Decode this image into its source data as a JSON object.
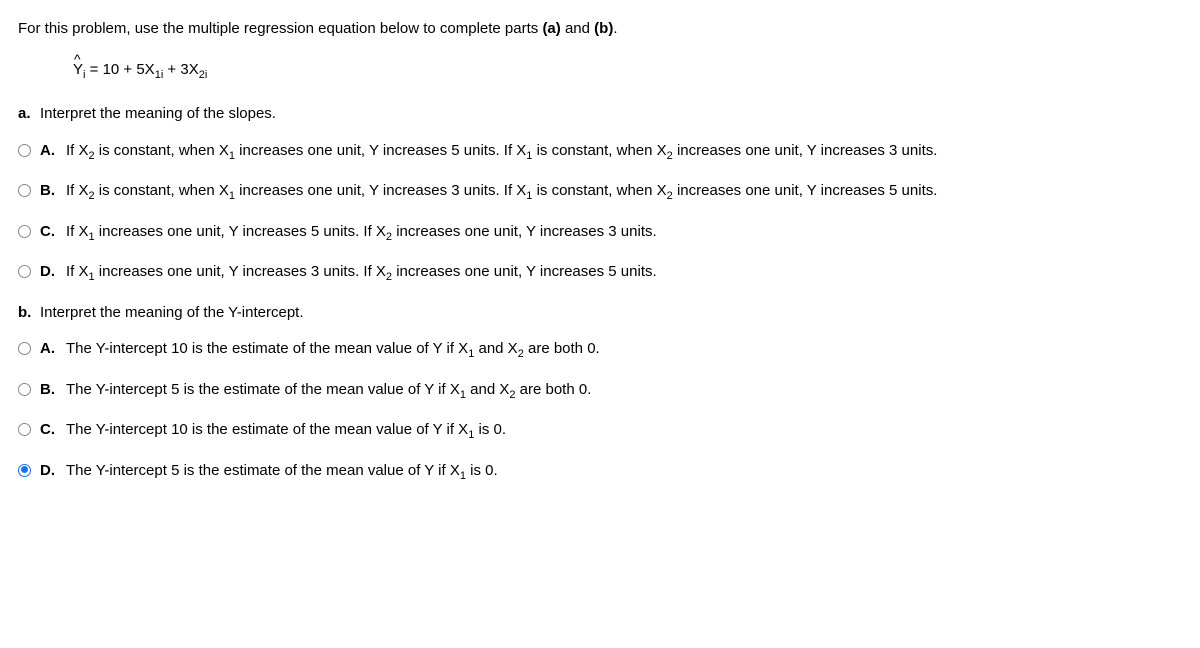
{
  "intro": {
    "prefix": "For this problem, use the multiple regression equation below to complete parts ",
    "part_a": "(a)",
    "mid": " and ",
    "part_b": "(b)",
    "suffix": "."
  },
  "equation": {
    "y": "Y",
    "y_sub": "i",
    "eq": " = 10 + 5X",
    "x1_sub": "1i",
    "plus": " + 3X",
    "x2_sub": "2i"
  },
  "part_a": {
    "label": "a.",
    "text": "Interpret the meaning of the slopes."
  },
  "options_a": [
    {
      "letter": "A.",
      "segments": [
        {
          "t": "If X"
        },
        {
          "sub": "2"
        },
        {
          "t": " is constant, when X"
        },
        {
          "sub": "1"
        },
        {
          "t": " increases one unit, Y increases 5 units.  If X"
        },
        {
          "sub": "1"
        },
        {
          "t": " is constant, when X"
        },
        {
          "sub": "2"
        },
        {
          "t": " increases one unit, Y increases 3 units."
        }
      ],
      "selected": false
    },
    {
      "letter": "B.",
      "segments": [
        {
          "t": "If X"
        },
        {
          "sub": "2"
        },
        {
          "t": " is constant, when X"
        },
        {
          "sub": "1"
        },
        {
          "t": " increases one unit, Y increases 3 units.  If X"
        },
        {
          "sub": "1"
        },
        {
          "t": " is constant, when X"
        },
        {
          "sub": "2"
        },
        {
          "t": " increases one unit, Y increases 5 units."
        }
      ],
      "selected": false
    },
    {
      "letter": "C.",
      "segments": [
        {
          "t": "If X"
        },
        {
          "sub": "1"
        },
        {
          "t": " increases one unit, Y increases 5 units.  If X"
        },
        {
          "sub": "2"
        },
        {
          "t": " increases one unit, Y increases 3 units."
        }
      ],
      "selected": false
    },
    {
      "letter": "D.",
      "segments": [
        {
          "t": "If X"
        },
        {
          "sub": "1"
        },
        {
          "t": " increases one unit, Y increases 3 units.  If X"
        },
        {
          "sub": "2"
        },
        {
          "t": " increases one unit, Y increases 5 units."
        }
      ],
      "selected": false
    }
  ],
  "part_b": {
    "label": "b.",
    "text": "Interpret the meaning of the Y-intercept."
  },
  "options_b": [
    {
      "letter": "A.",
      "segments": [
        {
          "t": "The Y-intercept 10 is the estimate of the mean value of Y if X"
        },
        {
          "sub": "1"
        },
        {
          "t": " and X"
        },
        {
          "sub": "2"
        },
        {
          "t": " are both 0."
        }
      ],
      "selected": false
    },
    {
      "letter": "B.",
      "segments": [
        {
          "t": "The Y-intercept 5 is the estimate of the mean value of Y if X"
        },
        {
          "sub": "1"
        },
        {
          "t": " and X"
        },
        {
          "sub": "2"
        },
        {
          "t": " are both 0."
        }
      ],
      "selected": false
    },
    {
      "letter": "C.",
      "segments": [
        {
          "t": "The Y-intercept 10 is the estimate of the mean value of Y if X"
        },
        {
          "sub": "1"
        },
        {
          "t": " is 0."
        }
      ],
      "selected": false
    },
    {
      "letter": "D.",
      "segments": [
        {
          "t": "The Y-intercept 5 is the estimate of the mean value of Y if X"
        },
        {
          "sub": "1"
        },
        {
          "t": " is 0."
        }
      ],
      "selected": true
    }
  ]
}
